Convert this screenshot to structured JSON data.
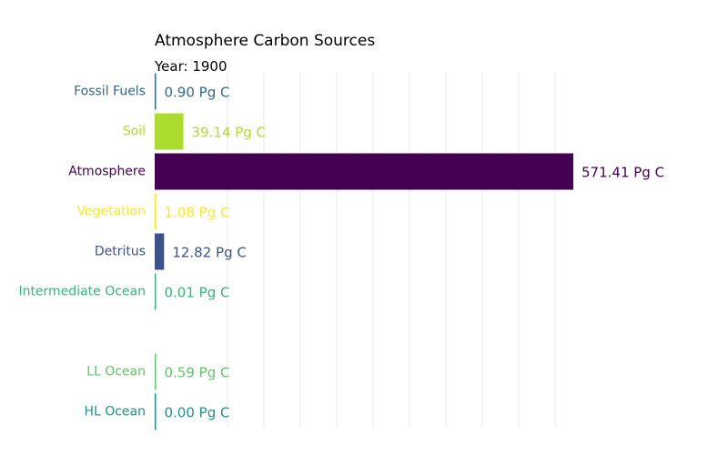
{
  "chart_data": {
    "type": "bar",
    "orientation": "horizontal",
    "title": "Atmosphere Carbon Sources",
    "subtitle": "Year: 1900",
    "unit": "Pg C",
    "xlim": [
      0,
      575
    ],
    "grid": true,
    "legend": "none",
    "categories": [
      "Fossil Fuels",
      "Soil",
      "Atmosphere",
      "Vegetation",
      "Detritus",
      "Intermediate Ocean",
      "",
      "LL Ocean",
      "HL Ocean"
    ],
    "values": [
      0.9,
      39.14,
      571.41,
      1.08,
      12.82,
      0.01,
      null,
      0.59,
      0.0
    ],
    "value_labels": [
      "0.90 Pg C",
      "39.14 Pg C",
      "571.41 Pg C",
      "1.08 Pg C",
      "12.82 Pg C",
      "0.01 Pg C",
      "",
      "0.59 Pg C",
      "0.00 Pg C"
    ],
    "colors": [
      "#31688e",
      "#addc30",
      "#440154",
      "#fde725",
      "#3b528b",
      "#35b779",
      "",
      "#5ec962",
      "#21918c"
    ]
  }
}
